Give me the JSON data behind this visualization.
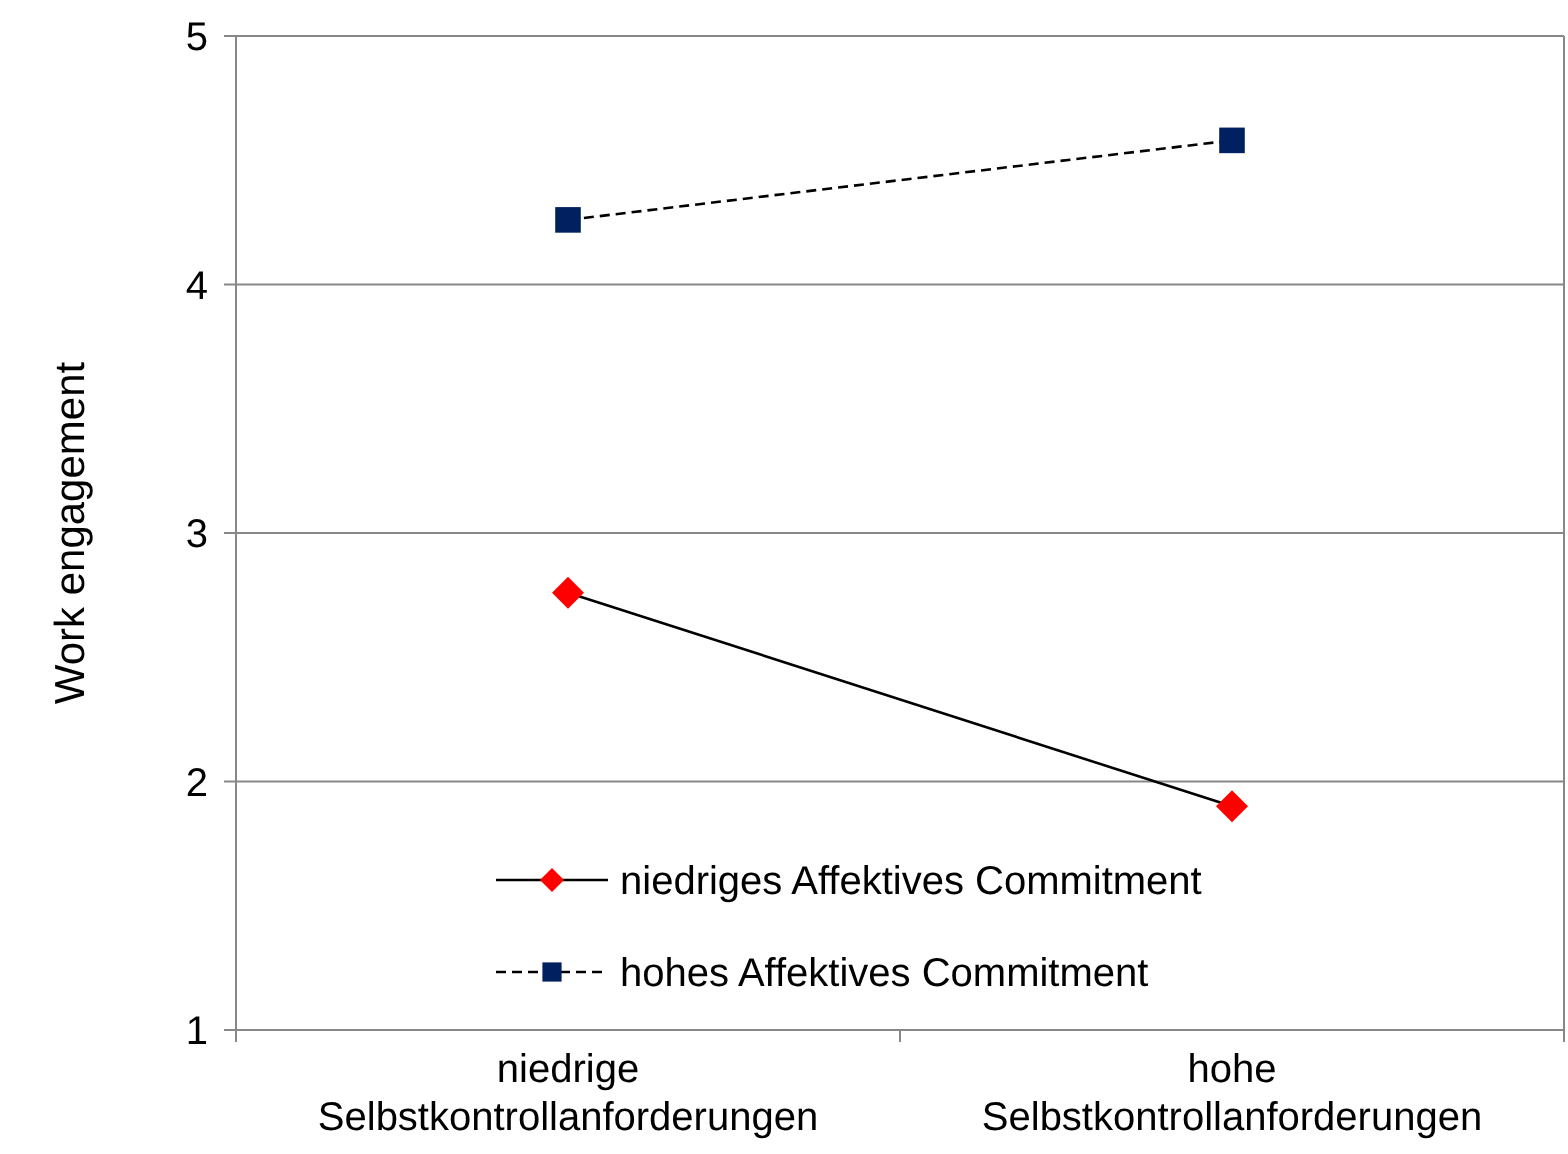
{
  "chart_data": {
    "type": "line",
    "ylabel": "Work engagement",
    "categories": [
      "niedrige Selbstkontrollanforderungen",
      "hohe Selbstkontrollanforderungen"
    ],
    "series": [
      {
        "name": "niedriges Affektives Commitment",
        "color": "#ff0000",
        "values": [
          2.76,
          1.9
        ],
        "marker": "diamond",
        "line_style": "solid"
      },
      {
        "name": "hohes Affektives Commitment",
        "color": "#002060",
        "values": [
          4.26,
          4.58
        ],
        "marker": "square",
        "line_style": "dashed"
      }
    ],
    "ylim": [
      1,
      5
    ],
    "yticks": [
      1,
      2,
      3,
      4,
      5
    ],
    "grid": "y",
    "legend": "bottom"
  }
}
